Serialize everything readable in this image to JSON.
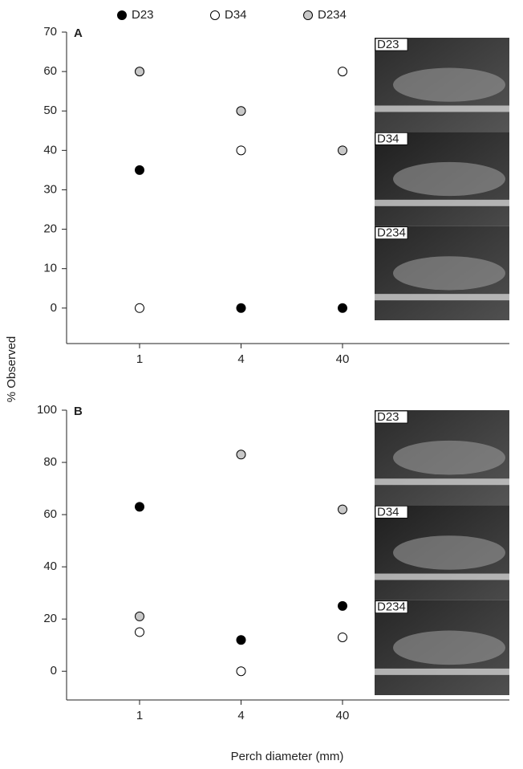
{
  "chart_data": [
    {
      "type": "scatter",
      "panel": "A",
      "y_label": "% Observed",
      "categories": [
        "1",
        "4",
        "40"
      ],
      "series": [
        {
          "name": "D23",
          "color": "#000000",
          "values": [
            35,
            0,
            0
          ]
        },
        {
          "name": "D34",
          "color": "#ffffff",
          "values": [
            0,
            40,
            60
          ]
        },
        {
          "name": "D234",
          "color": "#c8c8c8",
          "values": [
            60,
            50,
            40
          ]
        }
      ],
      "ylim": [
        -9,
        70
      ],
      "yticks": [
        0,
        10,
        20,
        30,
        40,
        50,
        60,
        70
      ],
      "photo_labels": [
        "D23",
        "D34",
        "D234"
      ]
    },
    {
      "type": "scatter",
      "panel": "B",
      "x_label": "Perch diameter (mm)",
      "categories": [
        "1",
        "4",
        "40"
      ],
      "series": [
        {
          "color": "#000000",
          "values": [
            63,
            12,
            25
          ]
        },
        {
          "color": "#ffffff",
          "values": [
            15,
            0,
            13
          ]
        },
        {
          "color": "#c8c8c8",
          "values": [
            21,
            83,
            62
          ]
        }
      ],
      "ylim": [
        -11,
        100
      ],
      "yticks": [
        0,
        20,
        40,
        60,
        80,
        100
      ],
      "photo_labels": [
        "D23",
        "D34",
        "D234"
      ]
    }
  ]
}
